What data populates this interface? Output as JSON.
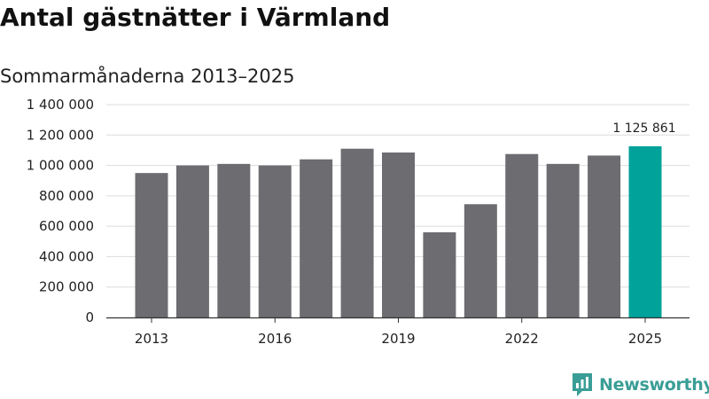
{
  "title": "Antal gästnätter i Värmland",
  "subtitle": "Sommarmånaderna 2013–2025",
  "brand": {
    "name": "Newsworthy",
    "icon": "bar-chart-speech-bubble-icon",
    "color": "#3a9e96"
  },
  "colors": {
    "bar": "#6d6c71",
    "highlight": "#00a29a",
    "grid": "#dcdcdc",
    "axis": "#333333"
  },
  "chart_data": {
    "type": "bar",
    "title": "Antal gästnätter i Värmland",
    "subtitle": "Sommarmånaderna 2013–2025",
    "categories": [
      "2013",
      "2014",
      "2015",
      "2016",
      "2017",
      "2018",
      "2019",
      "2020",
      "2021",
      "2022",
      "2023",
      "2024",
      "2025"
    ],
    "values": [
      950000,
      1000000,
      1010000,
      1000000,
      1040000,
      1110000,
      1085000,
      560000,
      745000,
      1075000,
      1010000,
      1065000,
      1125861
    ],
    "highlight_index": 12,
    "data_labels": [
      {
        "index": 12,
        "text": "1 125 861"
      }
    ],
    "x_tick_labels": [
      {
        "index": 0,
        "text": "2013"
      },
      {
        "index": 3,
        "text": "2016"
      },
      {
        "index": 6,
        "text": "2019"
      },
      {
        "index": 9,
        "text": "2022"
      },
      {
        "index": 12,
        "text": "2025"
      }
    ],
    "y_ticks": [
      0,
      200000,
      400000,
      600000,
      800000,
      1000000,
      1200000,
      1400000
    ],
    "y_tick_labels": [
      "0",
      "200 000",
      "400 000",
      "600 000",
      "800 000",
      "1 000 000",
      "1 200 000",
      "1 400 000"
    ],
    "ylim": [
      0,
      1400000
    ],
    "grid": true,
    "xlabel": "",
    "ylabel": ""
  }
}
